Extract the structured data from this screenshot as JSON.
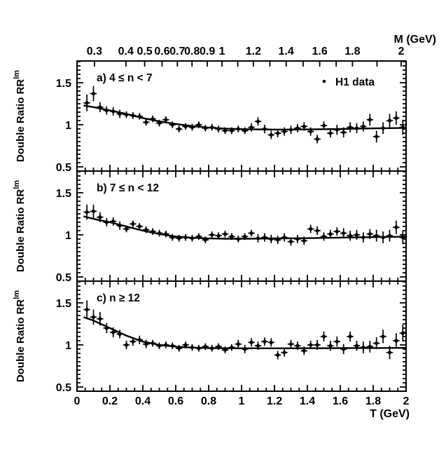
{
  "figure": {
    "background": "#ffffff",
    "ink": "#000000"
  },
  "legend": {
    "marker": "filled-dot",
    "label": "H1 data"
  },
  "panels": [
    {
      "id": "a",
      "label": "a) 4 ≤ n < 7"
    },
    {
      "id": "b",
      "label": "b) 7 ≤ n < 12"
    },
    {
      "id": "c",
      "label": "c) n ≥ 12"
    }
  ],
  "axes": {
    "x": {
      "title": "T (GeV)",
      "range": [
        0,
        2
      ],
      "major_tick_values": [
        0,
        0.2,
        0.4,
        0.6,
        0.8,
        1,
        1.2,
        1.4,
        1.6,
        1.8,
        2
      ],
      "major_tick_labels": [
        "0",
        "0.2",
        "0.4",
        "0.6",
        "0.8",
        "1",
        "1.2",
        "1.4",
        "1.6",
        "1.8",
        "2"
      ],
      "minor_step": 0.05
    },
    "top": {
      "title": "M (GeV)",
      "labeled_ticks": [
        {
          "label": "0.3",
          "t": 0.106
        },
        {
          "label": "0.4",
          "t": 0.297
        },
        {
          "label": "0.5",
          "t": 0.411
        },
        {
          "label": "0.6",
          "t": 0.517
        },
        {
          "label": "0.7",
          "t": 0.61
        },
        {
          "label": "0.8",
          "t": 0.699
        },
        {
          "label": "0.9",
          "t": 0.792
        },
        {
          "label": "1",
          "t": 0.881
        },
        {
          "label": "1.2",
          "t": 1.072
        },
        {
          "label": "1.4",
          "t": 1.271
        },
        {
          "label": "1.6",
          "t": 1.475
        },
        {
          "label": "1.8",
          "t": 1.674
        },
        {
          "label": "2",
          "t": 1.97
        }
      ],
      "unlabeled_ticks": [
        0.977,
        1.172,
        1.374,
        1.575,
        1.823
      ]
    },
    "y": {
      "title": "Double Ratio RR",
      "title_sup": "lm",
      "range": [
        0.45,
        1.758
      ],
      "major_tick_values": [
        0.5,
        1.0,
        1.5
      ],
      "major_tick_labels": [
        "0.5",
        "1",
        "1.5"
      ],
      "minor_step": 0.05
    }
  },
  "chart_data": {
    "type": "scatter",
    "series_name": "H1 data",
    "xlabel": "T (GeV)",
    "top_xlabel": "M (GeV)",
    "ylabel": "Double Ratio RR^lm",
    "xlim": [
      0,
      2
    ],
    "ylim": [
      0.45,
      1.758
    ],
    "xerr": 0.02,
    "t_values": [
      0.06,
      0.1,
      0.14,
      0.18,
      0.22,
      0.26,
      0.3,
      0.34,
      0.38,
      0.42,
      0.46,
      0.5,
      0.54,
      0.58,
      0.62,
      0.66,
      0.7,
      0.74,
      0.78,
      0.82,
      0.86,
      0.9,
      0.94,
      0.98,
      1.02,
      1.06,
      1.1,
      1.14,
      1.18,
      1.22,
      1.26,
      1.3,
      1.34,
      1.38,
      1.42,
      1.46,
      1.5,
      1.54,
      1.58,
      1.62,
      1.66,
      1.7,
      1.74,
      1.78,
      1.82,
      1.86,
      1.9,
      1.94,
      1.98
    ],
    "fit_t": [
      0.04,
      0.1,
      0.2,
      0.3,
      0.4,
      0.5,
      0.6,
      0.7,
      0.8,
      0.9,
      1.0,
      1.1,
      1.2,
      1.3,
      1.4,
      1.5,
      1.6,
      1.7,
      1.8,
      1.9,
      2.0
    ],
    "panels": [
      {
        "label": "a) 4 ≤ n < 7",
        "y": [
          1.26,
          1.37,
          1.21,
          1.17,
          1.16,
          1.13,
          1.12,
          1.11,
          1.1,
          1.03,
          1.07,
          1.02,
          1.06,
          1.0,
          0.95,
          0.98,
          0.97,
          1.0,
          0.96,
          0.97,
          0.95,
          0.93,
          0.93,
          0.95,
          0.93,
          0.97,
          1.04,
          0.95,
          0.88,
          0.9,
          0.92,
          0.94,
          0.96,
          0.98,
          0.92,
          0.83,
          0.99,
          0.9,
          0.94,
          0.91,
          0.97,
          0.96,
          0.98,
          1.06,
          0.86,
          0.96,
          1.05,
          1.08,
          0.97
        ],
        "yerr": [
          0.1,
          0.09,
          0.06,
          0.05,
          0.05,
          0.05,
          0.04,
          0.04,
          0.04,
          0.04,
          0.04,
          0.04,
          0.04,
          0.04,
          0.04,
          0.04,
          0.04,
          0.04,
          0.04,
          0.04,
          0.04,
          0.04,
          0.04,
          0.04,
          0.04,
          0.05,
          0.05,
          0.05,
          0.05,
          0.05,
          0.05,
          0.05,
          0.05,
          0.05,
          0.05,
          0.05,
          0.05,
          0.05,
          0.06,
          0.06,
          0.06,
          0.06,
          0.06,
          0.07,
          0.07,
          0.07,
          0.08,
          0.08,
          0.09
        ],
        "fit_y": [
          1.23,
          1.21,
          1.17,
          1.13,
          1.08,
          1.04,
          1.01,
          0.985,
          0.967,
          0.955,
          0.948,
          0.945,
          0.943,
          0.943,
          0.945,
          0.947,
          0.95,
          0.953,
          0.957,
          0.96,
          0.963
        ]
      },
      {
        "label": "b) 7 ≤ n < 12",
        "y": [
          1.27,
          1.28,
          1.21,
          1.15,
          1.16,
          1.11,
          1.07,
          1.13,
          1.1,
          1.06,
          1.04,
          1.02,
          1.01,
          0.97,
          0.96,
          0.97,
          0.96,
          0.98,
          0.94,
          1.0,
          0.99,
          1.01,
          0.98,
          0.95,
          0.98,
          1.02,
          0.96,
          0.97,
          0.95,
          0.94,
          0.97,
          0.92,
          0.95,
          0.93,
          1.07,
          1.05,
          0.98,
          1.01,
          1.04,
          1.02,
          0.99,
          1.0,
          0.97,
          1.01,
          0.99,
          0.97,
          0.99,
          1.09,
          0.97
        ],
        "yerr": [
          0.09,
          0.08,
          0.06,
          0.05,
          0.05,
          0.05,
          0.04,
          0.04,
          0.04,
          0.04,
          0.04,
          0.04,
          0.04,
          0.04,
          0.04,
          0.04,
          0.04,
          0.04,
          0.04,
          0.04,
          0.04,
          0.04,
          0.04,
          0.04,
          0.04,
          0.04,
          0.05,
          0.05,
          0.05,
          0.05,
          0.05,
          0.05,
          0.05,
          0.05,
          0.05,
          0.05,
          0.05,
          0.05,
          0.05,
          0.06,
          0.06,
          0.06,
          0.06,
          0.06,
          0.07,
          0.07,
          0.07,
          0.08,
          0.08
        ],
        "fit_y": [
          1.22,
          1.19,
          1.15,
          1.1,
          1.05,
          1.01,
          0.98,
          0.965,
          0.957,
          0.954,
          0.954,
          0.955,
          0.957,
          0.959,
          0.961,
          0.964,
          0.967,
          0.97,
          0.973,
          0.976,
          0.978
        ]
      },
      {
        "label": "c) n ≥ 12",
        "y": [
          1.42,
          1.33,
          1.31,
          1.2,
          1.15,
          1.13,
          1.0,
          1.04,
          1.06,
          1.01,
          1.02,
          0.99,
          1.0,
          0.99,
          0.96,
          1.0,
          0.97,
          0.96,
          0.98,
          0.96,
          0.98,
          0.94,
          0.97,
          1.01,
          0.95,
          1.03,
          0.99,
          1.04,
          1.03,
          0.88,
          0.91,
          1.01,
          0.99,
          0.93,
          1.0,
          1.0,
          1.1,
          0.99,
          1.04,
          0.95,
          1.1,
          0.99,
          0.97,
          0.98,
          1.02,
          1.1,
          0.91,
          1.05,
          1.14
        ],
        "yerr": [
          0.11,
          0.09,
          0.08,
          0.06,
          0.06,
          0.05,
          0.05,
          0.05,
          0.05,
          0.05,
          0.04,
          0.04,
          0.04,
          0.04,
          0.04,
          0.04,
          0.04,
          0.04,
          0.04,
          0.04,
          0.04,
          0.04,
          0.04,
          0.05,
          0.05,
          0.05,
          0.05,
          0.05,
          0.05,
          0.05,
          0.05,
          0.05,
          0.05,
          0.05,
          0.05,
          0.06,
          0.06,
          0.06,
          0.06,
          0.06,
          0.06,
          0.06,
          0.07,
          0.07,
          0.07,
          0.08,
          0.08,
          0.09,
          0.1
        ],
        "fit_y": [
          1.33,
          1.29,
          1.2,
          1.11,
          1.04,
          1.0,
          0.978,
          0.968,
          0.963,
          0.961,
          0.96,
          0.96,
          0.96,
          0.96,
          0.961,
          0.961,
          0.962,
          0.963,
          0.963,
          0.964,
          0.965
        ]
      }
    ]
  }
}
